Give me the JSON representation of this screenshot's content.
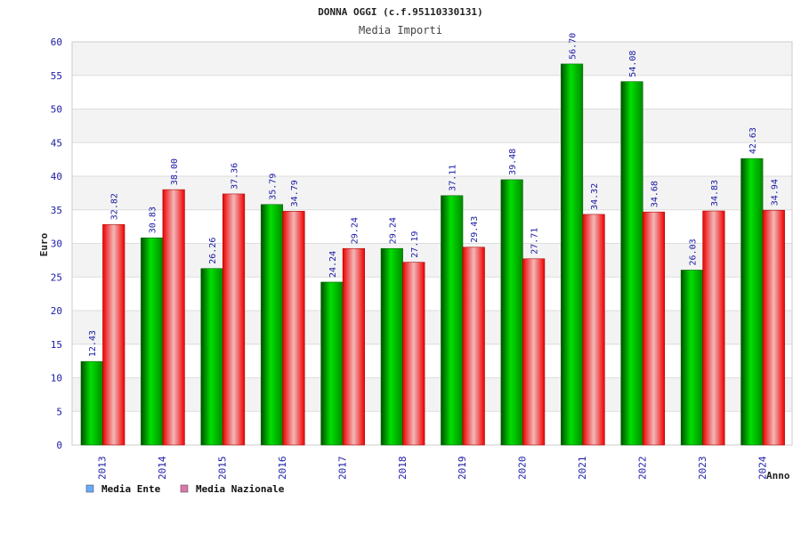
{
  "chart_data": {
    "type": "bar",
    "title": "DONNA OGGI (c.f.95110330131)",
    "subtitle": "Media Importi",
    "xlabel": "Anno",
    "ylabel": "Euro",
    "ylim": [
      0,
      60
    ],
    "yticks": [
      "0",
      "5",
      "10",
      "15",
      "20",
      "25",
      "30",
      "35",
      "40",
      "45",
      "50",
      "55",
      "60"
    ],
    "grid": true,
    "legend_position": "bottom-left",
    "categories": [
      "2013",
      "2014",
      "2015",
      "2016",
      "2017",
      "2018",
      "2019",
      "2020",
      "2021",
      "2022",
      "2023",
      "2024"
    ],
    "series": [
      {
        "name": "Media Ente",
        "color": "#00aa00",
        "legend_color": "#66aaff",
        "values": [
          12.43,
          30.83,
          26.26,
          35.79,
          24.24,
          29.24,
          37.11,
          39.48,
          56.7,
          54.08,
          26.03,
          42.63
        ],
        "labels": [
          "12.43",
          "30.83",
          "26.26",
          "35.79",
          "24.24",
          "29.24",
          "37.11",
          "39.48",
          "56.70",
          "54.08",
          "26.03",
          "42.63"
        ]
      },
      {
        "name": "Media Nazionale",
        "color": "#ee1111",
        "legend_color": "#dd77aa",
        "values": [
          32.82,
          38.0,
          37.36,
          34.79,
          29.24,
          27.19,
          29.43,
          27.71,
          34.32,
          34.68,
          34.83,
          34.94
        ],
        "labels": [
          "32.82",
          "38.00",
          "37.36",
          "34.79",
          "29.24",
          "27.19",
          "29.43",
          "27.71",
          "34.32",
          "34.68",
          "34.83",
          "34.94"
        ]
      }
    ]
  }
}
